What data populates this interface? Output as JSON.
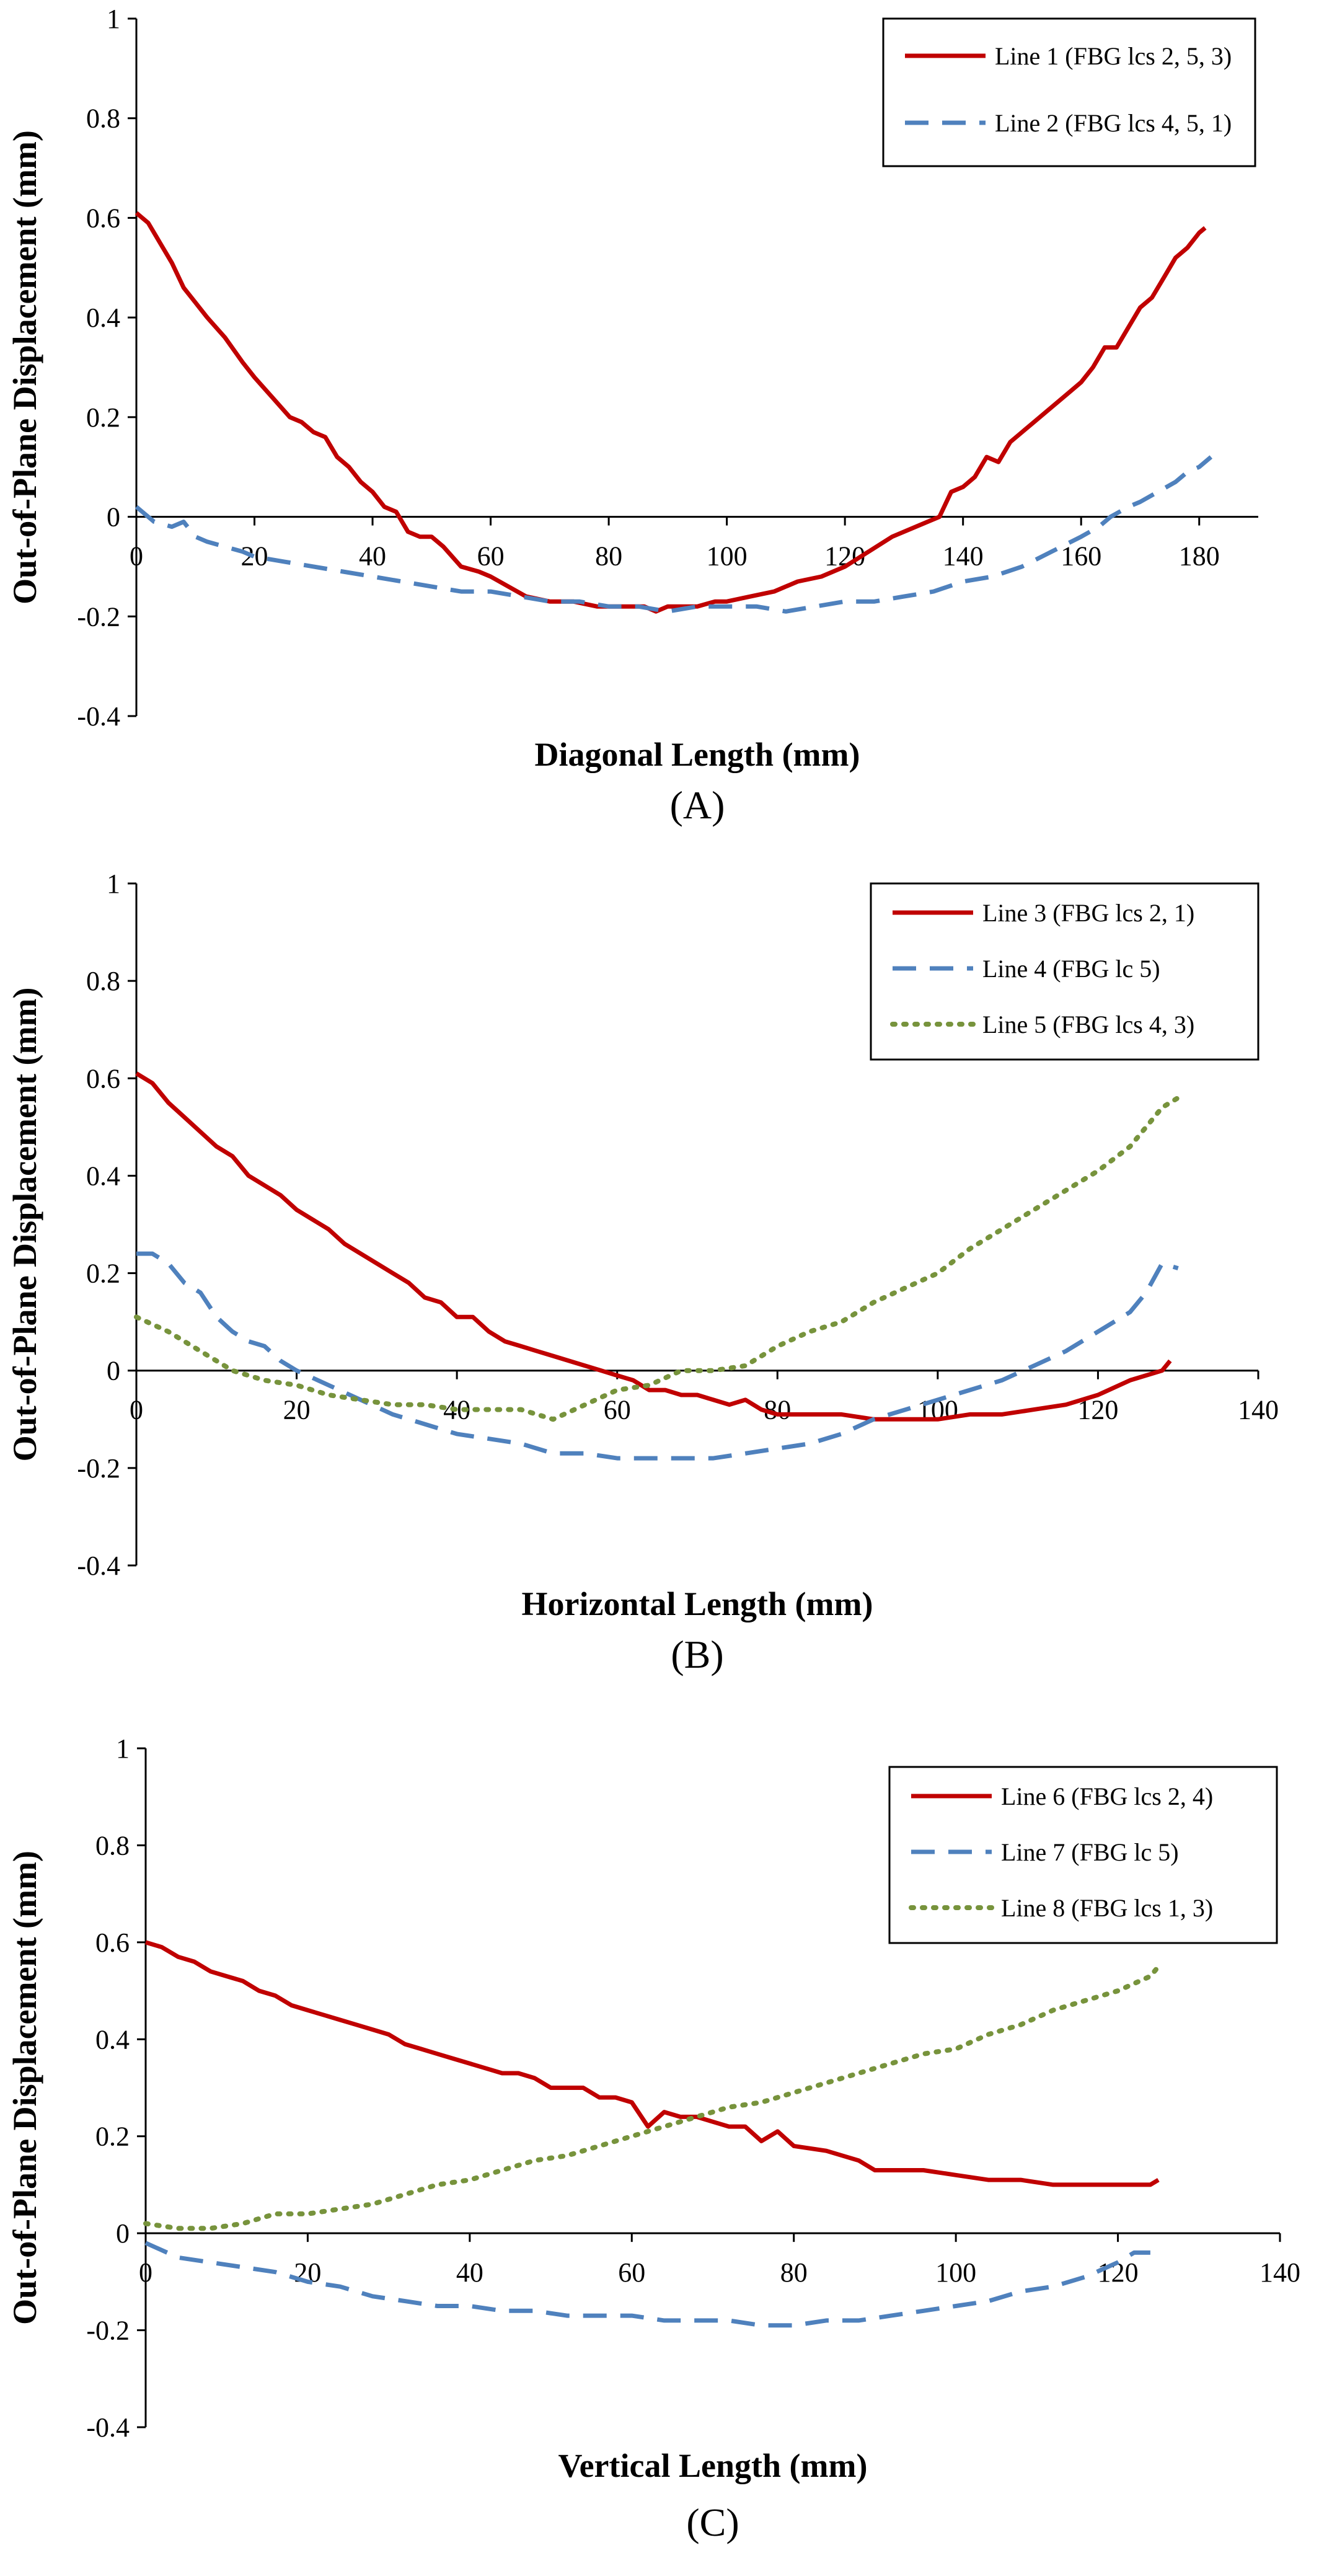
{
  "colors": {
    "line_red": "#C00000",
    "line_blue": "#4F81BD",
    "line_green": "#77933C",
    "axis": "#000000"
  },
  "chart_data": [
    {
      "type": "line",
      "caption": "(A)",
      "xlabel": "Diagonal Length (mm)",
      "ylabel": "Out-of-Plane Displacement  (mm)",
      "xlim": [
        0,
        190
      ],
      "ylim": [
        -0.4,
        1
      ],
      "xticks": [
        0,
        20,
        40,
        60,
        80,
        100,
        120,
        140,
        160,
        180
      ],
      "yticks": [
        -0.4,
        -0.2,
        0,
        0.2,
        0.4,
        0.6,
        0.8,
        1
      ],
      "ytick_labels": [
        "-0.4",
        "-0.2",
        "0",
        "0.2",
        "0.4",
        "0.6",
        "0.8",
        "1"
      ],
      "xtick_row": "at-zero",
      "grid": false,
      "legend_position": "top-right",
      "series": [
        {
          "name": "Line 1 (FBG lcs 2, 5, 3)",
          "style": "solid",
          "color": "#C00000",
          "x": [
            0,
            2,
            4,
            6,
            8,
            10,
            12,
            15,
            18,
            20,
            23,
            26,
            28,
            30,
            32,
            34,
            36,
            38,
            40,
            42,
            44,
            46,
            48,
            50,
            52,
            55,
            58,
            60,
            63,
            66,
            70,
            74,
            78,
            82,
            86,
            88,
            90,
            92,
            95,
            98,
            100,
            104,
            108,
            112,
            116,
            120,
            124,
            128,
            132,
            134,
            136,
            138,
            140,
            142,
            144,
            146,
            148,
            150,
            152,
            154,
            156,
            158,
            160,
            162,
            164,
            166,
            168,
            170,
            172,
            174,
            176,
            178,
            180,
            181
          ],
          "y": [
            0.61,
            0.59,
            0.55,
            0.51,
            0.46,
            0.43,
            0.4,
            0.36,
            0.31,
            0.28,
            0.24,
            0.2,
            0.19,
            0.17,
            0.16,
            0.12,
            0.1,
            0.07,
            0.05,
            0.02,
            0.01,
            -0.03,
            -0.04,
            -0.04,
            -0.06,
            -0.1,
            -0.11,
            -0.12,
            -0.14,
            -0.16,
            -0.17,
            -0.17,
            -0.18,
            -0.18,
            -0.18,
            -0.19,
            -0.18,
            -0.18,
            -0.18,
            -0.17,
            -0.17,
            -0.16,
            -0.15,
            -0.13,
            -0.12,
            -0.1,
            -0.07,
            -0.04,
            -0.02,
            -0.01,
            0.0,
            0.05,
            0.06,
            0.08,
            0.12,
            0.11,
            0.15,
            0.17,
            0.19,
            0.21,
            0.23,
            0.25,
            0.27,
            0.3,
            0.34,
            0.34,
            0.38,
            0.42,
            0.44,
            0.48,
            0.52,
            0.54,
            0.57,
            0.58
          ]
        },
        {
          "name": "Line 2 (FBG lcs 4, 5, 1)",
          "style": "dashed",
          "color": "#4F81BD",
          "x": [
            0,
            3,
            6,
            8,
            10,
            12,
            15,
            18,
            20,
            25,
            30,
            35,
            40,
            45,
            50,
            55,
            60,
            65,
            70,
            75,
            80,
            85,
            90,
            95,
            100,
            105,
            110,
            115,
            120,
            125,
            130,
            135,
            140,
            145,
            150,
            155,
            160,
            163,
            165,
            168,
            170,
            173,
            176,
            178,
            180,
            182
          ],
          "y": [
            0.02,
            -0.01,
            -0.02,
            -0.01,
            -0.04,
            -0.05,
            -0.06,
            -0.07,
            -0.08,
            -0.09,
            -0.1,
            -0.11,
            -0.12,
            -0.13,
            -0.14,
            -0.15,
            -0.15,
            -0.16,
            -0.17,
            -0.17,
            -0.18,
            -0.18,
            -0.19,
            -0.18,
            -0.18,
            -0.18,
            -0.19,
            -0.18,
            -0.17,
            -0.17,
            -0.16,
            -0.15,
            -0.13,
            -0.12,
            -0.1,
            -0.07,
            -0.04,
            -0.02,
            0.0,
            0.02,
            0.03,
            0.05,
            0.07,
            0.09,
            0.1,
            0.12
          ]
        }
      ]
    },
    {
      "type": "line",
      "caption": "(B)",
      "xlabel": "Horizontal Length (mm)",
      "ylabel": "Out-of-Plane Displacement  (mm)",
      "xlim": [
        0,
        140
      ],
      "ylim": [
        -0.4,
        1
      ],
      "xticks": [
        0,
        20,
        40,
        60,
        80,
        100,
        120,
        140
      ],
      "yticks": [
        -0.4,
        -0.2,
        0,
        0.2,
        0.4,
        0.6,
        0.8,
        1
      ],
      "ytick_labels": [
        "-0.4",
        "-0.2",
        "0",
        "0.2",
        "0.4",
        "0.6",
        "0.8",
        "1"
      ],
      "xtick_row": "at-zero",
      "grid": false,
      "legend_position": "top-right",
      "series": [
        {
          "name": "Line 3 (FBG lcs 2, 1)",
          "style": "solid",
          "color": "#C00000",
          "x": [
            0,
            2,
            4,
            6,
            8,
            10,
            12,
            14,
            16,
            18,
            20,
            22,
            24,
            26,
            28,
            30,
            32,
            34,
            36,
            38,
            40,
            42,
            44,
            46,
            48,
            50,
            52,
            54,
            56,
            58,
            60,
            62,
            64,
            66,
            68,
            70,
            72,
            74,
            76,
            78,
            80,
            84,
            88,
            92,
            96,
            100,
            104,
            108,
            112,
            116,
            120,
            124,
            128,
            129
          ],
          "y": [
            0.61,
            0.59,
            0.55,
            0.52,
            0.49,
            0.46,
            0.44,
            0.4,
            0.38,
            0.36,
            0.33,
            0.31,
            0.29,
            0.26,
            0.24,
            0.22,
            0.2,
            0.18,
            0.15,
            0.14,
            0.11,
            0.11,
            0.08,
            0.06,
            0.05,
            0.04,
            0.03,
            0.02,
            0.01,
            0.0,
            -0.01,
            -0.02,
            -0.04,
            -0.04,
            -0.05,
            -0.05,
            -0.06,
            -0.07,
            -0.06,
            -0.08,
            -0.09,
            -0.09,
            -0.09,
            -0.1,
            -0.1,
            -0.1,
            -0.09,
            -0.09,
            -0.08,
            -0.07,
            -0.05,
            -0.02,
            0.0,
            0.02
          ]
        },
        {
          "name": "Line 4 (FBG lc 5)",
          "style": "dashed",
          "color": "#4F81BD",
          "x": [
            0,
            2,
            4,
            6,
            8,
            10,
            12,
            14,
            16,
            18,
            20,
            24,
            28,
            32,
            36,
            40,
            44,
            48,
            52,
            56,
            60,
            64,
            68,
            72,
            76,
            80,
            84,
            88,
            92,
            96,
            100,
            104,
            108,
            112,
            116,
            120,
            124,
            126,
            128,
            130
          ],
          "y": [
            0.24,
            0.24,
            0.22,
            0.18,
            0.16,
            0.11,
            0.08,
            0.06,
            0.05,
            0.02,
            0.0,
            -0.03,
            -0.06,
            -0.09,
            -0.11,
            -0.13,
            -0.14,
            -0.15,
            -0.17,
            -0.17,
            -0.18,
            -0.18,
            -0.18,
            -0.18,
            -0.17,
            -0.16,
            -0.15,
            -0.13,
            -0.1,
            -0.08,
            -0.06,
            -0.04,
            -0.02,
            0.01,
            0.04,
            0.08,
            0.12,
            0.16,
            0.22,
            0.21
          ]
        },
        {
          "name": "Line 5 (FBG lcs 4, 3)",
          "style": "dotted",
          "color": "#77933C",
          "x": [
            0,
            4,
            8,
            12,
            16,
            20,
            24,
            28,
            32,
            36,
            40,
            44,
            48,
            52,
            56,
            60,
            64,
            68,
            72,
            76,
            80,
            84,
            88,
            92,
            96,
            100,
            104,
            108,
            112,
            116,
            120,
            124,
            126,
            128,
            130
          ],
          "y": [
            0.11,
            0.08,
            0.04,
            0.0,
            -0.02,
            -0.03,
            -0.05,
            -0.06,
            -0.07,
            -0.07,
            -0.08,
            -0.08,
            -0.08,
            -0.1,
            -0.07,
            -0.04,
            -0.03,
            0.0,
            0.0,
            0.01,
            0.05,
            0.08,
            0.1,
            0.14,
            0.17,
            0.2,
            0.25,
            0.29,
            0.33,
            0.37,
            0.41,
            0.46,
            0.5,
            0.54,
            0.56
          ]
        }
      ]
    },
    {
      "type": "line",
      "caption": "(C)",
      "xlabel": "Vertical Length (mm)",
      "ylabel": "Out-of-Plane Displacement  (mm)",
      "xlim": [
        0,
        140
      ],
      "ylim": [
        -0.4,
        1
      ],
      "xticks": [
        0,
        20,
        40,
        60,
        80,
        100,
        120,
        140
      ],
      "yticks": [
        -0.4,
        -0.2,
        0,
        0.2,
        0.4,
        0.6,
        0.8,
        1
      ],
      "ytick_labels": [
        "-0.4",
        "-0.2",
        "0",
        "0.2",
        "0.4",
        "0.6",
        "0.8",
        "1"
      ],
      "xtick_row": "at-zero",
      "grid": false,
      "legend_position": "top-right",
      "series": [
        {
          "name": "Line 6 (FBG lcs 2, 4)",
          "style": "solid",
          "color": "#C00000",
          "x": [
            0,
            2,
            4,
            6,
            8,
            10,
            12,
            14,
            16,
            18,
            20,
            22,
            24,
            26,
            28,
            30,
            32,
            34,
            36,
            38,
            40,
            42,
            44,
            46,
            48,
            50,
            52,
            54,
            56,
            58,
            60,
            62,
            64,
            66,
            68,
            70,
            72,
            74,
            76,
            78,
            80,
            84,
            88,
            90,
            92,
            96,
            100,
            104,
            108,
            112,
            116,
            120,
            122,
            124,
            125
          ],
          "y": [
            0.6,
            0.59,
            0.57,
            0.56,
            0.54,
            0.53,
            0.52,
            0.5,
            0.49,
            0.47,
            0.46,
            0.45,
            0.44,
            0.43,
            0.42,
            0.41,
            0.39,
            0.38,
            0.37,
            0.36,
            0.35,
            0.34,
            0.33,
            0.33,
            0.32,
            0.3,
            0.3,
            0.3,
            0.28,
            0.28,
            0.27,
            0.22,
            0.25,
            0.24,
            0.24,
            0.23,
            0.22,
            0.22,
            0.19,
            0.21,
            0.18,
            0.17,
            0.15,
            0.13,
            0.13,
            0.13,
            0.12,
            0.11,
            0.11,
            0.1,
            0.1,
            0.1,
            0.1,
            0.1,
            0.11
          ]
        },
        {
          "name": "Line 7 (FBG lc 5)",
          "style": "dashed",
          "color": "#4F81BD",
          "x": [
            0,
            4,
            8,
            12,
            16,
            20,
            24,
            28,
            32,
            36,
            40,
            44,
            48,
            52,
            56,
            60,
            64,
            68,
            72,
            76,
            80,
            84,
            88,
            92,
            96,
            100,
            104,
            108,
            112,
            116,
            120,
            122,
            124
          ],
          "y": [
            -0.02,
            -0.05,
            -0.06,
            -0.07,
            -0.08,
            -0.1,
            -0.11,
            -0.13,
            -0.14,
            -0.15,
            -0.15,
            -0.16,
            -0.16,
            -0.17,
            -0.17,
            -0.17,
            -0.18,
            -0.18,
            -0.18,
            -0.19,
            -0.19,
            -0.18,
            -0.18,
            -0.17,
            -0.16,
            -0.15,
            -0.14,
            -0.12,
            -0.11,
            -0.09,
            -0.06,
            -0.04,
            -0.04
          ]
        },
        {
          "name": "Line 8 (FBG lcs 1, 3)",
          "style": "dotted",
          "color": "#77933C",
          "x": [
            0,
            4,
            8,
            12,
            16,
            20,
            24,
            28,
            32,
            36,
            40,
            44,
            48,
            52,
            56,
            60,
            64,
            68,
            72,
            76,
            80,
            84,
            88,
            92,
            96,
            100,
            104,
            108,
            112,
            116,
            120,
            124,
            125
          ],
          "y": [
            0.02,
            0.01,
            0.01,
            0.02,
            0.04,
            0.04,
            0.05,
            0.06,
            0.08,
            0.1,
            0.11,
            0.13,
            0.15,
            0.16,
            0.18,
            0.2,
            0.22,
            0.24,
            0.26,
            0.27,
            0.29,
            0.31,
            0.33,
            0.35,
            0.37,
            0.38,
            0.41,
            0.43,
            0.46,
            0.48,
            0.5,
            0.53,
            0.55
          ]
        }
      ]
    }
  ]
}
